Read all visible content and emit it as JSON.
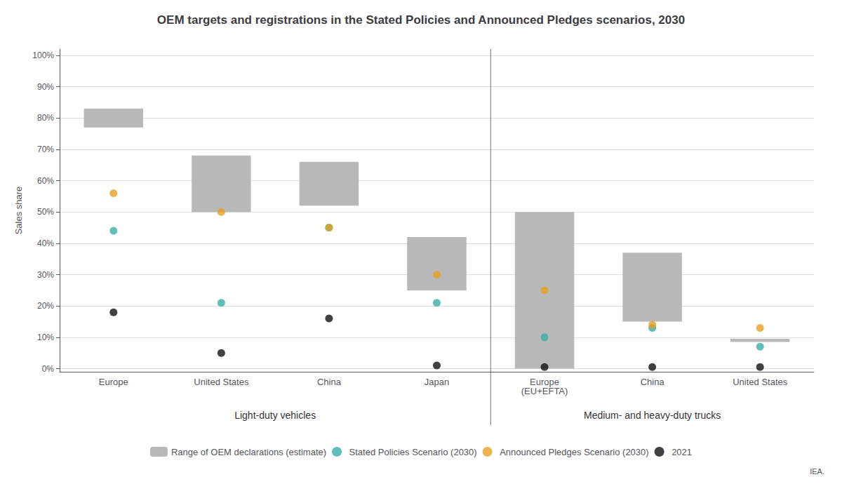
{
  "chart_data": {
    "type": "bar",
    "title": "OEM targets and registrations in the Stated Policies and Announced Pledges scenarios, 2030",
    "ylabel": "Sales share",
    "categories": [
      "Europe",
      "United States",
      "China",
      "Japan",
      "Europe\n(EU+EFTA)",
      "China",
      "United States"
    ],
    "groups": [
      "Light-duty vehicles",
      "Light-duty vehicles",
      "Light-duty vehicles",
      "Light-duty vehicles",
      "Medium- and heavy-duty trucks",
      "Medium- and heavy-duty trucks",
      "Medium- and heavy-duty trucks"
    ],
    "ylim": [
      -0.01,
      1.02
    ],
    "yticks": [
      {
        "value": 0,
        "label": "0%"
      },
      {
        "value": 0.1,
        "label": "10%"
      },
      {
        "value": 0.2,
        "label": "20%"
      },
      {
        "value": 0.3,
        "label": "30%"
      },
      {
        "value": 0.4,
        "label": "40%"
      },
      {
        "value": 0.5,
        "label": "50%"
      },
      {
        "value": 0.6,
        "label": "60%"
      },
      {
        "value": 0.7,
        "label": "70%"
      },
      {
        "value": 0.8,
        "label": "80%"
      },
      {
        "value": 0.9,
        "label": "90%"
      },
      {
        "value": 1.0,
        "label": "100%"
      }
    ],
    "grid": true,
    "legend": "bottom",
    "annotation": "IEA.",
    "series": [
      {
        "name": "Range of OEM declarations (estimate)",
        "type": "bar",
        "color": "#b8b8b8",
        "low": [
          0.77,
          0.5,
          0.52,
          0.25,
          0.0,
          0.15,
          0.085
        ],
        "high": [
          0.83,
          0.68,
          0.66,
          0.42,
          0.5,
          0.37,
          0.095
        ]
      },
      {
        "name": "Stated Policies Scenario (2030)",
        "type": "scatter",
        "marker": "circle",
        "color": "#3aafa9",
        "values": [
          0.44,
          0.21,
          0.45,
          0.21,
          0.1,
          0.13,
          0.07
        ]
      },
      {
        "name": "Announced Pledges Scenario (2030)",
        "type": "scatter",
        "marker": "circle",
        "color": "#e5a020",
        "values": [
          0.56,
          0.5,
          0.45,
          0.3,
          0.25,
          0.14,
          0.13
        ]
      },
      {
        "name": "2021",
        "type": "scatter",
        "marker": "circle",
        "color": "#111111",
        "values": [
          0.18,
          0.05,
          0.16,
          0.01,
          0.005,
          0.005,
          0.005
        ]
      }
    ]
  }
}
